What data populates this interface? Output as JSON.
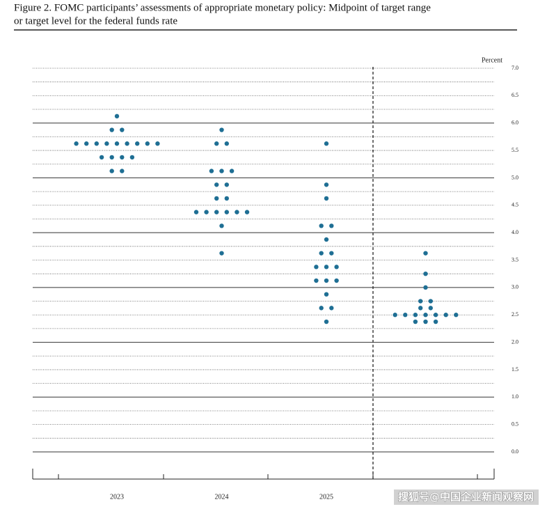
{
  "chart_data": {
    "type": "dot",
    "title_lines": [
      "Figure 2.  FOMC participants’ assessments of appropriate monetary policy:  Midpoint of target range",
      "or target level for the federal funds rate"
    ],
    "y_label": "Percent",
    "categories": [
      "2023",
      "2024",
      "2025",
      null
    ],
    "values": [
      [
        6.125,
        5.875,
        5.875,
        5.625,
        5.625,
        5.625,
        5.625,
        5.625,
        5.625,
        5.625,
        5.625,
        5.625,
        5.375,
        5.375,
        5.375,
        5.375,
        5.125,
        5.125
      ],
      [
        5.875,
        5.625,
        5.625,
        5.125,
        5.125,
        5.125,
        4.875,
        4.875,
        4.625,
        4.625,
        4.375,
        4.375,
        4.375,
        4.375,
        4.375,
        4.375,
        4.125,
        3.625
      ],
      [
        5.625,
        4.875,
        4.625,
        4.125,
        4.125,
        3.875,
        3.625,
        3.625,
        3.375,
        3.375,
        3.375,
        3.125,
        3.125,
        3.125,
        2.875,
        2.625,
        2.625,
        2.375
      ],
      [
        3.625,
        3.25,
        3.0,
        2.75,
        2.75,
        2.625,
        2.625,
        2.5,
        2.5,
        2.5,
        2.5,
        2.5,
        2.5,
        2.5,
        2.375,
        2.375,
        2.375
      ]
    ],
    "color": "#1f6f94",
    "ylim": [
      0,
      7
    ],
    "yticks": [
      {
        "value": 0,
        "label": "0.0"
      },
      0.5,
      {
        "value": 1,
        "label": "1.0"
      },
      1.5,
      {
        "value": 2,
        "label": "2.0"
      },
      2.5,
      {
        "value": 3,
        "label": "3.0"
      },
      3.5,
      {
        "value": 4,
        "label": "4.0"
      },
      4.5,
      {
        "value": 5,
        "label": "5.0"
      },
      5.5,
      {
        "value": 6,
        "label": "6.0"
      },
      6.5,
      {
        "value": 7,
        "label": "7.0"
      }
    ],
    "ygrid": [
      0,
      0.25,
      0.5,
      0.75,
      1,
      1.25,
      1.5,
      1.75,
      2,
      2.25,
      2.5,
      2.75,
      3,
      3.25,
      3.5,
      3.75,
      4,
      4.25,
      4.5,
      4.75,
      5,
      5.25,
      5.5,
      5.75,
      6,
      6.25,
      6.5,
      6.75,
      7
    ],
    "watermark": "搜狐号@中国企业新闻观察网"
  }
}
